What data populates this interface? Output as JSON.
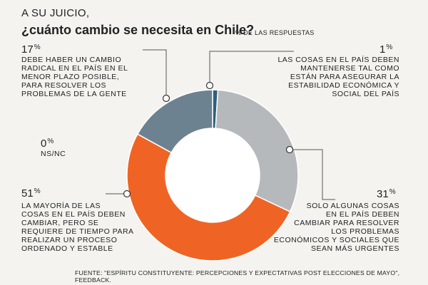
{
  "header": {
    "title_line1": "A SU JUICIO,",
    "title_line2": "¿cuánto cambio se necesita en Chile?",
    "unit_note": "% DE LAS RESPUESTAS"
  },
  "chart_data": {
    "type": "pie",
    "donut": true,
    "unit": "%",
    "slices": [
      {
        "value": 1,
        "pct_label": "1",
        "color": "#2e5f7a",
        "label": "LAS COSAS EN EL PAÍS DEBEN MANTENERSE TAL COMO ESTÁN PARA ASEGURAR LA ESTABILIDAD ECONÓMICA Y SOCIAL DEL PAÍS",
        "lines": [
          "LAS COSAS EN EL PAÍS DEBEN",
          "MANTENERSE TAL COMO",
          "ESTÁN PARA ASEGURAR LA",
          "ESTABILIDAD ECONÓMICA Y",
          "SOCIAL DEL PAÍS"
        ]
      },
      {
        "value": 31,
        "pct_label": "31",
        "color": "#b5b9bb",
        "label": "SOLO ALGUNAS COSAS EN EL PAÍS DEBEN CAMBIAR PARA RESOLVER LOS PROBLEMAS ECONÓMICOS Y SOCIALES QUE SEAN MÁS URGENTES",
        "lines": [
          "SOLO ALGUNAS COSAS",
          "EN EL PAÍS DEBEN",
          "CAMBIAR PARA RESOLVER",
          "LOS PROBLEMAS",
          "ECONÓMICOS Y SOCIALES QUE",
          "SEAN MÁS URGENTES"
        ]
      },
      {
        "value": 51,
        "pct_label": "51",
        "color": "#ef6424",
        "label": "LA MAYORÍA DE LAS COSAS EN EL PAÍS DEBEN CAMBIAR, PERO SE REQUIERE DE TIEMPO PARA REALIZAR UN PROCESO ORDENADO Y ESTABLE",
        "lines": [
          "LA MAYORÍA DE LAS",
          "COSAS EN EL PAÍS DEBEN",
          "CAMBIAR, PERO SE",
          "REQUIERE DE TIEMPO PARA",
          "REALIZAR UN PROCESO",
          "ORDENADO Y ESTABLE"
        ]
      },
      {
        "value": 17,
        "pct_label": "17",
        "color": "#6d8290",
        "label": "DEBE HABER UN CAMBIO RADICAL EN EL PAÍS EN EL MENOR PLAZO POSIBLE, PARA RESOLVER LOS PROBLEMAS DE LA GENTE",
        "lines": [
          "DEBE HABER UN CAMBIO",
          "RADICAL EN EL PAÍS EN EL",
          "MENOR PLAZO POSIBLE,",
          "PARA RESOLVER LOS",
          "PROBLEMAS DE LA GENTE"
        ]
      },
      {
        "value": 0,
        "pct_label": "0",
        "color": "#444444",
        "label": "NS/NC",
        "lines": [
          "NS/NC"
        ]
      }
    ]
  },
  "footer": {
    "source": "FUENTE: \"ESPÍRITU CONSTITUYENTE: PERCEPCIONES Y EXPECTATIVAS POST ELECCIONES DE MAYO\", FEEDBACK."
  }
}
